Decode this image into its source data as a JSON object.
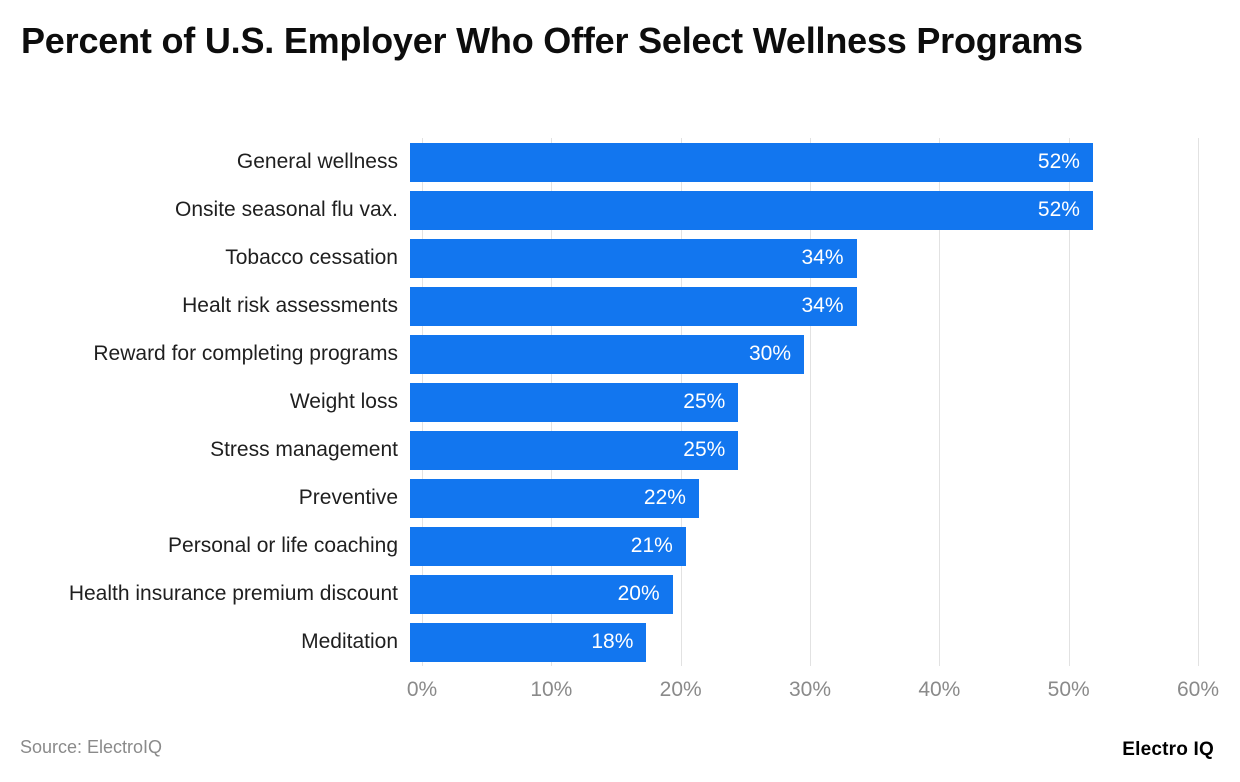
{
  "title": "Percent of U.S. Employer Who Offer Select Wellness Programs",
  "footer": {
    "source": "Source: ElectroIQ",
    "brand": "Electro IQ"
  },
  "colors": {
    "bar": "#1276ef",
    "grid": "#e2e2e2",
    "axis_label": "#8a8a8a",
    "category_label": "#1f1f1f",
    "value_label": "#ffffff",
    "background": "#ffffff"
  },
  "chart_data": {
    "type": "bar",
    "orientation": "horizontal",
    "title": "Percent of U.S. Employer Who Offer Select Wellness Programs",
    "categories": [
      "General wellness",
      "Onsite seasonal flu vax.",
      "Tobacco cessation",
      "Healt risk assessments",
      "Reward for completing programs",
      "Weight loss",
      "Stress management",
      "Preventive",
      "Personal or life coaching",
      "Health insurance premium discount",
      "Meditation"
    ],
    "values": [
      52,
      52,
      34,
      34,
      30,
      25,
      25,
      22,
      21,
      20,
      18
    ],
    "value_labels": [
      "52%",
      "52%",
      "34%",
      "34%",
      "30%",
      "25%",
      "25%",
      "22%",
      "21%",
      "20%",
      "18%"
    ],
    "xlabel": "",
    "ylabel": "",
    "xlim": [
      0,
      60
    ],
    "xticks": [
      {
        "value": 0,
        "label": "0%"
      },
      {
        "value": 10,
        "label": "10%"
      },
      {
        "value": 20,
        "label": "20%"
      },
      {
        "value": 30,
        "label": "30%"
      },
      {
        "value": 40,
        "label": "40%"
      },
      {
        "value": 50,
        "label": "50%"
      },
      {
        "value": 60,
        "label": "60%"
      }
    ],
    "grid": true,
    "legend": false
  }
}
